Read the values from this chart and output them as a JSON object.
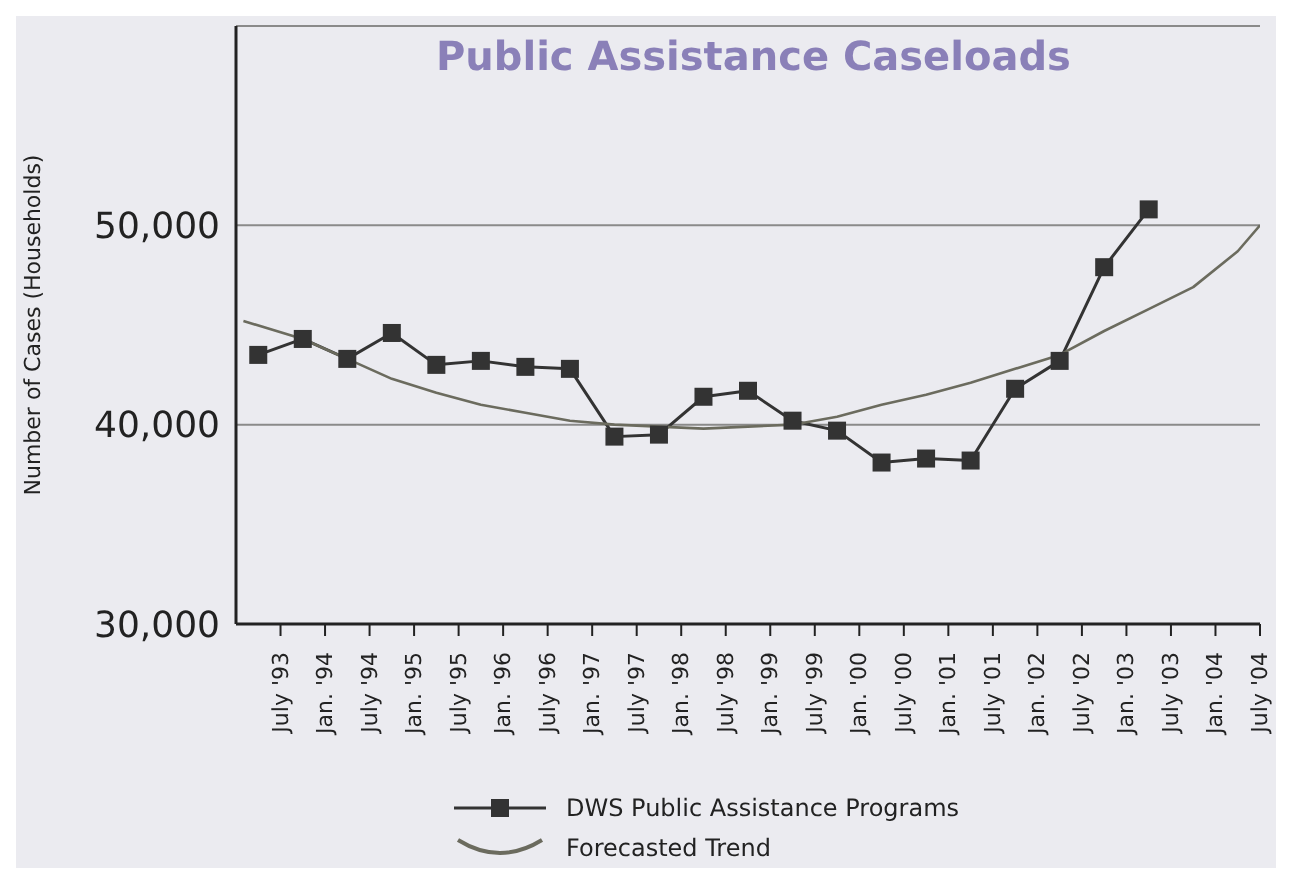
{
  "chart_data": {
    "type": "line",
    "title": "Public Assistance Caseloads",
    "ylabel": "Number of Cases (Households)",
    "xlim": [
      "1993-01",
      "2004-07"
    ],
    "xticks": [
      {
        "value": "1993-07",
        "label": "July '93"
      },
      {
        "value": "1994-01",
        "label": "Jan. '94"
      },
      {
        "value": "1994-07",
        "label": "July '94"
      },
      {
        "value": "1995-01",
        "label": "Jan. '95"
      },
      {
        "value": "1995-07",
        "label": "July '95"
      },
      {
        "value": "1996-01",
        "label": "Jan. '96"
      },
      {
        "value": "1996-07",
        "label": "July '96"
      },
      {
        "value": "1997-01",
        "label": "Jan. '97"
      },
      {
        "value": "1997-07",
        "label": "July '97"
      },
      {
        "value": "1998-01",
        "label": "Jan. '98"
      },
      {
        "value": "1998-07",
        "label": "July '98"
      },
      {
        "value": "1999-01",
        "label": "Jan. '99"
      },
      {
        "value": "1999-07",
        "label": "July '99"
      },
      {
        "value": "2000-01",
        "label": "Jan. '00"
      },
      {
        "value": "2000-07",
        "label": "July '00"
      },
      {
        "value": "2001-01",
        "label": "Jan. '01"
      },
      {
        "value": "2001-07",
        "label": "July '01"
      },
      {
        "value": "2002-01",
        "label": "Jan. '02"
      },
      {
        "value": "2002-07",
        "label": "July '02"
      },
      {
        "value": "2003-01",
        "label": "Jan. '03"
      },
      {
        "value": "2003-07",
        "label": "July '03"
      },
      {
        "value": "2004-01",
        "label": "Jan. '04"
      },
      {
        "value": "2004-07",
        "label": "July '04"
      }
    ],
    "ylim": [
      30000,
      60000
    ],
    "yticks": [
      {
        "value": 30000,
        "label": "30,000"
      },
      {
        "value": 40000,
        "label": "40,000"
      },
      {
        "value": 50000,
        "label": "50,000"
      }
    ],
    "grid": "y",
    "legend": "bottom",
    "line_style": "solid",
    "series": [
      {
        "name": "DWS Public Assistance Programs",
        "color": "#333333",
        "marker": "square",
        "x": [
          "1993-04",
          "1993-10",
          "1994-04",
          "1994-10",
          "1995-04",
          "1995-10",
          "1996-04",
          "1996-10",
          "1997-04",
          "1997-10",
          "1998-04",
          "1998-10",
          "1999-04",
          "1999-10",
          "2000-04",
          "2000-10",
          "2001-04",
          "2001-10",
          "2002-04",
          "2002-10",
          "2003-04"
        ],
        "values": [
          43500,
          44300,
          43300,
          44600,
          43000,
          43200,
          42900,
          42800,
          39400,
          39500,
          41400,
          41700,
          40200,
          39700,
          38100,
          38300,
          38200,
          41800,
          43200,
          47900,
          50800
        ]
      },
      {
        "name": "Forecasted Trend",
        "type": "line",
        "color": "#6b6b5e",
        "marker": "none",
        "x": [
          "1993-02",
          "1993-10",
          "1994-04",
          "1994-10",
          "1995-04",
          "1995-10",
          "1996-04",
          "1996-10",
          "1997-04",
          "1997-10",
          "1998-04",
          "1998-10",
          "1999-04",
          "1999-10",
          "2000-04",
          "2000-10",
          "2001-04",
          "2001-10",
          "2002-04",
          "2002-10",
          "2003-04",
          "2003-10",
          "2004-04",
          "2004-07"
        ],
        "values": [
          45200,
          44300,
          43300,
          42300,
          41600,
          41000,
          40600,
          40200,
          40000,
          39900,
          39800,
          39900,
          40000,
          40400,
          41000,
          41500,
          42100,
          42800,
          43500,
          44700,
          45800,
          46900,
          48700,
          50000
        ]
      }
    ]
  }
}
